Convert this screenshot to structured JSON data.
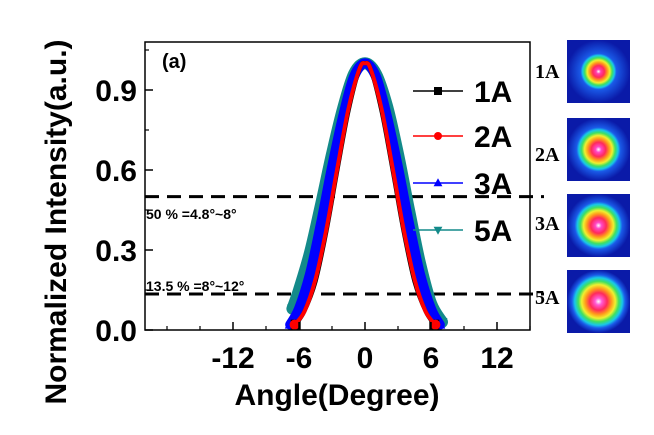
{
  "chart_data": {
    "type": "line",
    "panel_label": "(a)",
    "xlabel": "Angle(Degree)",
    "ylabel": "Normalized Intensity(a.u.)",
    "xlim": [
      -20,
      15
    ],
    "ylim": [
      0,
      1.08
    ],
    "x_ticks": [
      -12,
      -6,
      0,
      6,
      12
    ],
    "y_ticks": [
      0.0,
      0.3,
      0.6,
      0.9
    ],
    "y_tick_labels": [
      "0.0",
      "0.3",
      "0.6",
      "0.9"
    ],
    "grid": false,
    "legend_position": "right",
    "series": [
      {
        "name": "1A",
        "color": "#000000",
        "marker": "square",
        "lw": 4,
        "x": [
          -6.3,
          -5.5,
          -4.5,
          -3.5,
          -2.5,
          -1.5,
          -0.5,
          0,
          0.5,
          1.5,
          2.5,
          3.5,
          4.5,
          5.5,
          6.3
        ],
        "y": [
          0.02,
          0.07,
          0.18,
          0.37,
          0.6,
          0.82,
          0.98,
          1.0,
          0.98,
          0.82,
          0.6,
          0.37,
          0.18,
          0.07,
          0.02
        ]
      },
      {
        "name": "2A",
        "color": "#ff0000",
        "marker": "circle",
        "lw": 4,
        "x": [
          -6.4,
          -5.5,
          -4.5,
          -3.5,
          -2.5,
          -1.5,
          -0.5,
          0,
          0.5,
          1.5,
          2.5,
          3.5,
          4.5,
          5.5,
          6.4
        ],
        "y": [
          0.02,
          0.07,
          0.19,
          0.38,
          0.61,
          0.83,
          0.98,
          1.0,
          0.98,
          0.83,
          0.61,
          0.38,
          0.19,
          0.07,
          0.02
        ]
      },
      {
        "name": "3A",
        "color": "#0000ff",
        "marker": "triangle-up",
        "lw": 10,
        "x": [
          -6.8,
          -6,
          -5,
          -4,
          -3,
          -2,
          -1,
          0,
          1,
          2,
          3,
          4,
          5,
          6,
          6.8
        ],
        "y": [
          0.02,
          0.08,
          0.21,
          0.4,
          0.61,
          0.8,
          0.95,
          1.0,
          0.95,
          0.8,
          0.61,
          0.4,
          0.21,
          0.08,
          0.02
        ]
      },
      {
        "name": "5A",
        "color": "#138a8a",
        "marker": "triangle-down",
        "lw": 12,
        "x": [
          -6.6,
          -6,
          -5,
          -4,
          -3,
          -2,
          -1,
          0,
          1,
          2,
          3,
          4,
          5,
          6,
          7.0
        ],
        "y": [
          0.08,
          0.15,
          0.29,
          0.47,
          0.66,
          0.83,
          0.96,
          1.0,
          0.96,
          0.84,
          0.66,
          0.45,
          0.25,
          0.1,
          0.03
        ]
      }
    ],
    "reference_lines": [
      {
        "y": 0.5,
        "style": "dashed",
        "label": "50 % =4.8°~8°"
      },
      {
        "y": 0.135,
        "style": "dashed",
        "label": "13.5 % =8°~12°"
      }
    ],
    "beam_images": [
      {
        "label": "1A",
        "core": "#ff3fb0",
        "scale": 0.62
      },
      {
        "label": "2A",
        "core": "#ff48c8",
        "scale": 0.76
      },
      {
        "label": "3A",
        "core": "#ff48c8",
        "scale": 0.82
      },
      {
        "label": "5A",
        "core": "#ff5ad6",
        "scale": 0.92
      }
    ]
  }
}
